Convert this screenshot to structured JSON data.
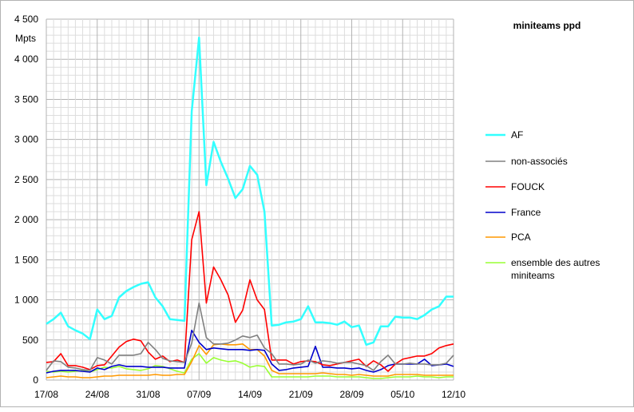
{
  "chart_data": {
    "type": "line",
    "title": "miniteams ppd",
    "xlabel": "",
    "ylabel": "Mpts",
    "ylim": [
      0,
      4500
    ],
    "yticks": [
      0,
      500,
      1000,
      1500,
      2000,
      2500,
      3000,
      3500,
      4000,
      4500
    ],
    "ytick_labels": [
      "0",
      "500",
      "1 000",
      "1 500",
      "2 000",
      "2 500",
      "3 000",
      "3 500",
      "4 000",
      "4 500"
    ],
    "x_dates": [
      "17/08",
      "18/08",
      "19/08",
      "20/08",
      "21/08",
      "22/08",
      "23/08",
      "24/08",
      "25/08",
      "26/08",
      "27/08",
      "28/08",
      "29/08",
      "30/08",
      "31/08",
      "01/09",
      "02/09",
      "03/09",
      "04/09",
      "05/09",
      "06/09",
      "07/09",
      "08/09",
      "09/09",
      "10/09",
      "11/09",
      "12/09",
      "13/09",
      "14/09",
      "15/09",
      "16/09",
      "17/09",
      "18/09",
      "19/09",
      "20/09",
      "21/09",
      "22/09",
      "23/09",
      "24/09",
      "25/09",
      "26/09",
      "27/09",
      "28/09",
      "29/09",
      "30/09",
      "01/10",
      "02/10",
      "03/10",
      "04/10",
      "05/10",
      "06/10",
      "07/10",
      "08/10",
      "09/10",
      "10/10",
      "11/10",
      "12/10"
    ],
    "xtick_labels": [
      "17/08",
      "24/08",
      "31/08",
      "07/09",
      "14/09",
      "21/09",
      "28/09",
      "05/10",
      "12/10"
    ],
    "grid": true,
    "legend_position": "right",
    "series": [
      {
        "name": "AF",
        "color": "#33ffff",
        "values": [
          700,
          760,
          840,
          670,
          620,
          580,
          510,
          880,
          760,
          800,
          1030,
          1110,
          1160,
          1200,
          1220,
          1030,
          920,
          760,
          750,
          740,
          3350,
          4270,
          2430,
          2970,
          2720,
          2510,
          2270,
          2380,
          2670,
          2560,
          2100,
          680,
          690,
          720,
          730,
          760,
          920,
          720,
          720,
          710,
          690,
          730,
          660,
          680,
          440,
          470,
          670,
          670,
          790,
          780,
          780,
          760,
          810,
          880,
          920,
          1040,
          1040
        ]
      },
      {
        "name": "non-associés",
        "color": "#808080",
        "values": [
          120,
          240,
          230,
          160,
          150,
          130,
          120,
          280,
          250,
          200,
          310,
          310,
          310,
          330,
          470,
          380,
          270,
          240,
          230,
          220,
          460,
          960,
          530,
          450,
          450,
          460,
          500,
          550,
          530,
          560,
          400,
          330,
          200,
          200,
          190,
          200,
          250,
          210,
          240,
          230,
          210,
          220,
          220,
          200,
          180,
          120,
          230,
          310,
          200,
          200,
          210,
          200,
          200,
          190,
          190,
          210,
          310
        ]
      },
      {
        "name": "FOUCK",
        "color": "#ff0000",
        "values": [
          220,
          230,
          330,
          180,
          180,
          160,
          130,
          180,
          190,
          300,
          410,
          480,
          510,
          490,
          350,
          260,
          300,
          230,
          250,
          220,
          1750,
          2100,
          960,
          1410,
          1250,
          1060,
          720,
          870,
          1250,
          1000,
          880,
          250,
          250,
          250,
          200,
          230,
          240,
          230,
          190,
          180,
          200,
          220,
          240,
          260,
          170,
          240,
          190,
          110,
          200,
          260,
          280,
          300,
          300,
          330,
          400,
          430,
          450
        ]
      },
      {
        "name": "France",
        "color": "#0000cc",
        "values": [
          90,
          110,
          120,
          120,
          120,
          110,
          100,
          150,
          130,
          170,
          190,
          170,
          170,
          170,
          160,
          160,
          160,
          150,
          150,
          150,
          620,
          470,
          380,
          400,
          390,
          380,
          380,
          380,
          370,
          380,
          370,
          200,
          120,
          130,
          150,
          160,
          170,
          420,
          160,
          160,
          150,
          150,
          140,
          150,
          120,
          100,
          130,
          180,
          200,
          200,
          200,
          200,
          260,
          180,
          190,
          200,
          170
        ]
      },
      {
        "name": "PCA",
        "color": "#ff9900",
        "values": [
          30,
          40,
          50,
          40,
          40,
          30,
          30,
          40,
          50,
          50,
          60,
          60,
          60,
          60,
          60,
          70,
          60,
          60,
          70,
          70,
          230,
          430,
          320,
          440,
          450,
          440,
          440,
          450,
          380,
          380,
          300,
          120,
          80,
          80,
          80,
          80,
          80,
          80,
          90,
          80,
          70,
          70,
          60,
          70,
          60,
          50,
          50,
          50,
          70,
          70,
          70,
          70,
          60,
          60,
          60,
          60,
          60
        ]
      },
      {
        "name": "ensemble des autres miniteams",
        "color": "#99ff33",
        "values": [
          110,
          100,
          110,
          100,
          110,
          120,
          100,
          130,
          160,
          150,
          170,
          140,
          130,
          120,
          140,
          180,
          170,
          140,
          110,
          90,
          260,
          330,
          210,
          280,
          250,
          230,
          240,
          210,
          160,
          180,
          170,
          40,
          40,
          40,
          40,
          40,
          40,
          50,
          50,
          50,
          40,
          40,
          40,
          40,
          30,
          20,
          20,
          30,
          40,
          40,
          40,
          50,
          40,
          40,
          30,
          40,
          40
        ]
      }
    ]
  }
}
